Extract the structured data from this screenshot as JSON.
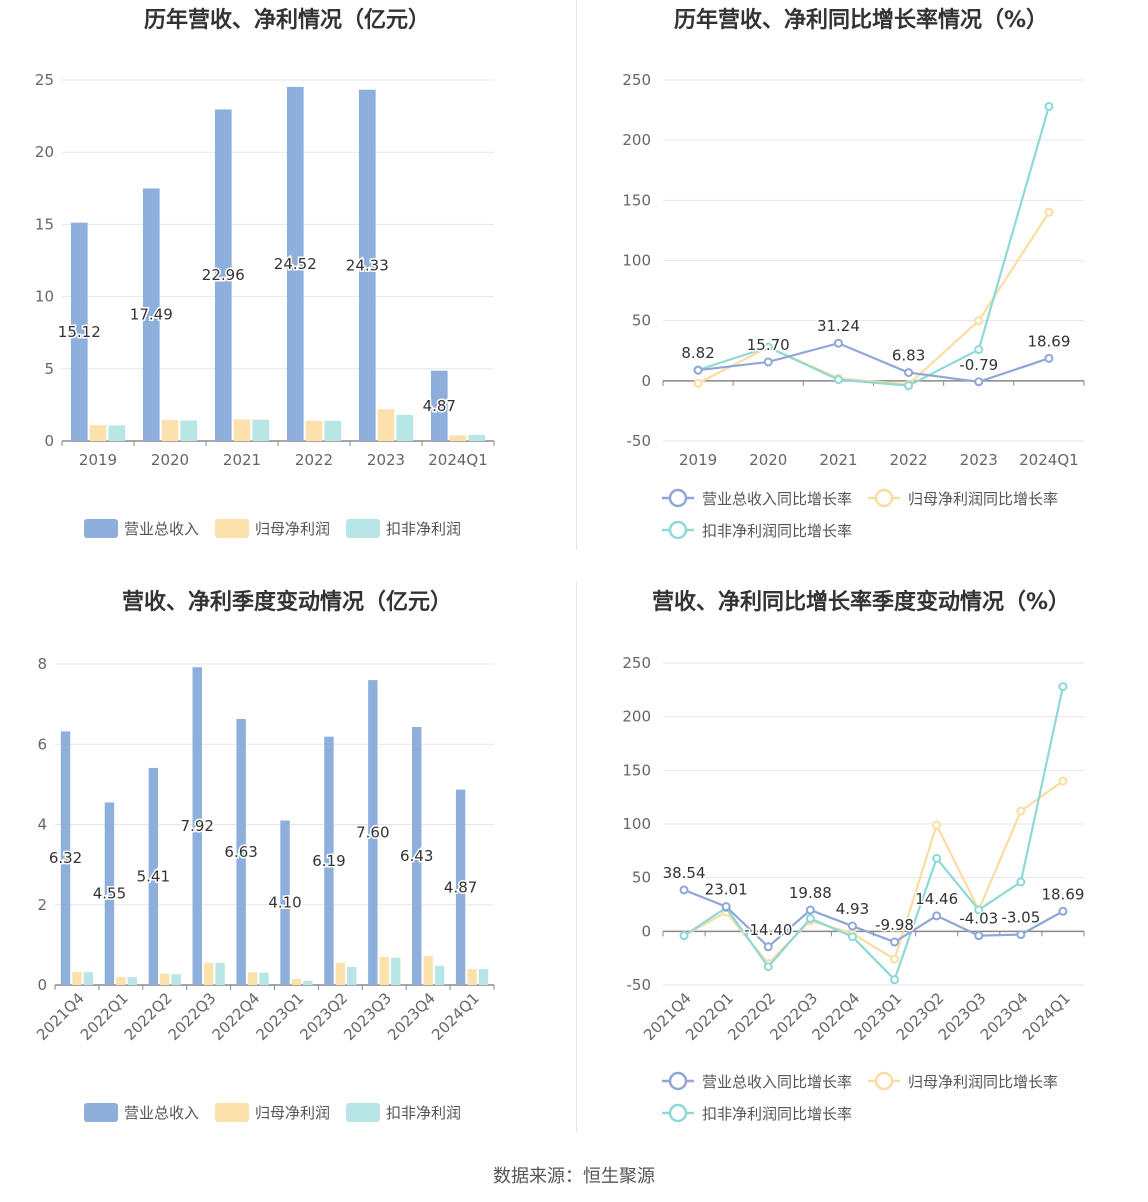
{
  "footer": "数据来源：恒生聚源",
  "colors": {
    "revenue": "#8eaedc",
    "parent_profit": "#fde1ad",
    "deducted_profit": "#b8e6e6",
    "revenue_line": "#8ea7d6",
    "parent_line": "#fcdca0",
    "deducted_line": "#8ed8d8"
  },
  "chart_data": [
    {
      "type": "bar",
      "title": "历年营收、净利情况（亿元）",
      "categories": [
        "2019",
        "2020",
        "2021",
        "2022",
        "2023",
        "2024Q1"
      ],
      "ylim": [
        0,
        25
      ],
      "yticks": [
        0,
        5,
        10,
        15,
        20,
        25
      ],
      "series": [
        {
          "name": "营业总收入",
          "values": [
            15.12,
            17.49,
            22.96,
            24.52,
            24.33,
            4.87
          ],
          "labels": [
            "15.12",
            "17.49",
            "22.96",
            "24.52",
            "24.33",
            "4.87"
          ]
        },
        {
          "name": "归母净利润",
          "values": [
            1.1,
            1.45,
            1.5,
            1.4,
            2.2,
            0.4
          ]
        },
        {
          "name": "扣非净利润",
          "values": [
            1.08,
            1.42,
            1.48,
            1.4,
            1.8,
            0.42
          ]
        }
      ],
      "grid": true,
      "legend": "bottom"
    },
    {
      "type": "line",
      "title": "历年营收、净利同比增长率情况（%）",
      "categories": [
        "2019",
        "2020",
        "2021",
        "2022",
        "2023",
        "2024Q1"
      ],
      "ylim": [
        -50,
        250
      ],
      "yticks": [
        -50,
        0,
        50,
        100,
        150,
        200,
        250
      ],
      "series": [
        {
          "name": "营业总收入同比增长率",
          "values": [
            8.82,
            15.7,
            31.24,
            6.83,
            -0.79,
            18.69
          ],
          "labels": [
            "8.82",
            "15.70",
            "31.24",
            "6.83",
            "-0.79",
            "18.69"
          ]
        },
        {
          "name": "归母净利润同比增长率",
          "values": [
            -2,
            28,
            2,
            -3,
            50,
            140
          ]
        },
        {
          "name": "扣非净利润同比增长率",
          "values": [
            9,
            28,
            1,
            -4,
            26,
            228
          ]
        }
      ],
      "grid": true,
      "legend": "bottom"
    },
    {
      "type": "bar",
      "title": "营收、净利季度变动情况（亿元）",
      "categories": [
        "2021Q4",
        "2022Q1",
        "2022Q2",
        "2022Q3",
        "2022Q4",
        "2023Q1",
        "2023Q2",
        "2023Q3",
        "2023Q4",
        "2024Q1"
      ],
      "ylim": [
        0,
        8
      ],
      "yticks": [
        0,
        2,
        4,
        6,
        8
      ],
      "series": [
        {
          "name": "营业总收入",
          "values": [
            6.32,
            4.55,
            5.41,
            7.92,
            6.63,
            4.1,
            6.19,
            7.6,
            6.43,
            4.87
          ],
          "labels": [
            "6.32",
            "4.55",
            "5.41",
            "7.92",
            "6.63",
            "4.10",
            "6.19",
            "7.60",
            "6.43",
            "4.87"
          ]
        },
        {
          "name": "归母净利润",
          "values": [
            0.33,
            0.2,
            0.28,
            0.55,
            0.32,
            0.15,
            0.55,
            0.7,
            0.72,
            0.4
          ]
        },
        {
          "name": "扣非净利润",
          "values": [
            0.32,
            0.2,
            0.27,
            0.55,
            0.31,
            0.1,
            0.45,
            0.68,
            0.48,
            0.4
          ]
        }
      ],
      "grid": true,
      "legend": "bottom"
    },
    {
      "type": "line",
      "title": "营收、净利同比增长率季度变动情况（%）",
      "categories": [
        "2021Q4",
        "2022Q1",
        "2022Q2",
        "2022Q3",
        "2022Q4",
        "2023Q1",
        "2023Q2",
        "2023Q3",
        "2023Q4",
        "2024Q1"
      ],
      "ylim": [
        -50,
        250
      ],
      "yticks": [
        -50,
        0,
        50,
        100,
        150,
        200,
        250
      ],
      "series": [
        {
          "name": "营业总收入同比增长率",
          "values": [
            38.54,
            23.01,
            -14.4,
            19.88,
            4.93,
            -9.98,
            14.46,
            -4.03,
            -3.05,
            18.69
          ],
          "labels": [
            "38.54",
            "23.01",
            "-14.40",
            "19.88",
            "4.93",
            "-9.98",
            "14.46",
            "-4.03",
            "-3.05",
            "18.69"
          ]
        },
        {
          "name": "归母净利润同比增长率",
          "values": [
            -4,
            18,
            -30,
            10,
            -2,
            -26,
            99,
            20,
            112,
            140
          ]
        },
        {
          "name": "扣非净利润同比增长率",
          "values": [
            -4,
            22,
            -33,
            12,
            -5,
            -45,
            68,
            20,
            46,
            228
          ]
        }
      ],
      "grid": true,
      "legend": "bottom"
    }
  ]
}
